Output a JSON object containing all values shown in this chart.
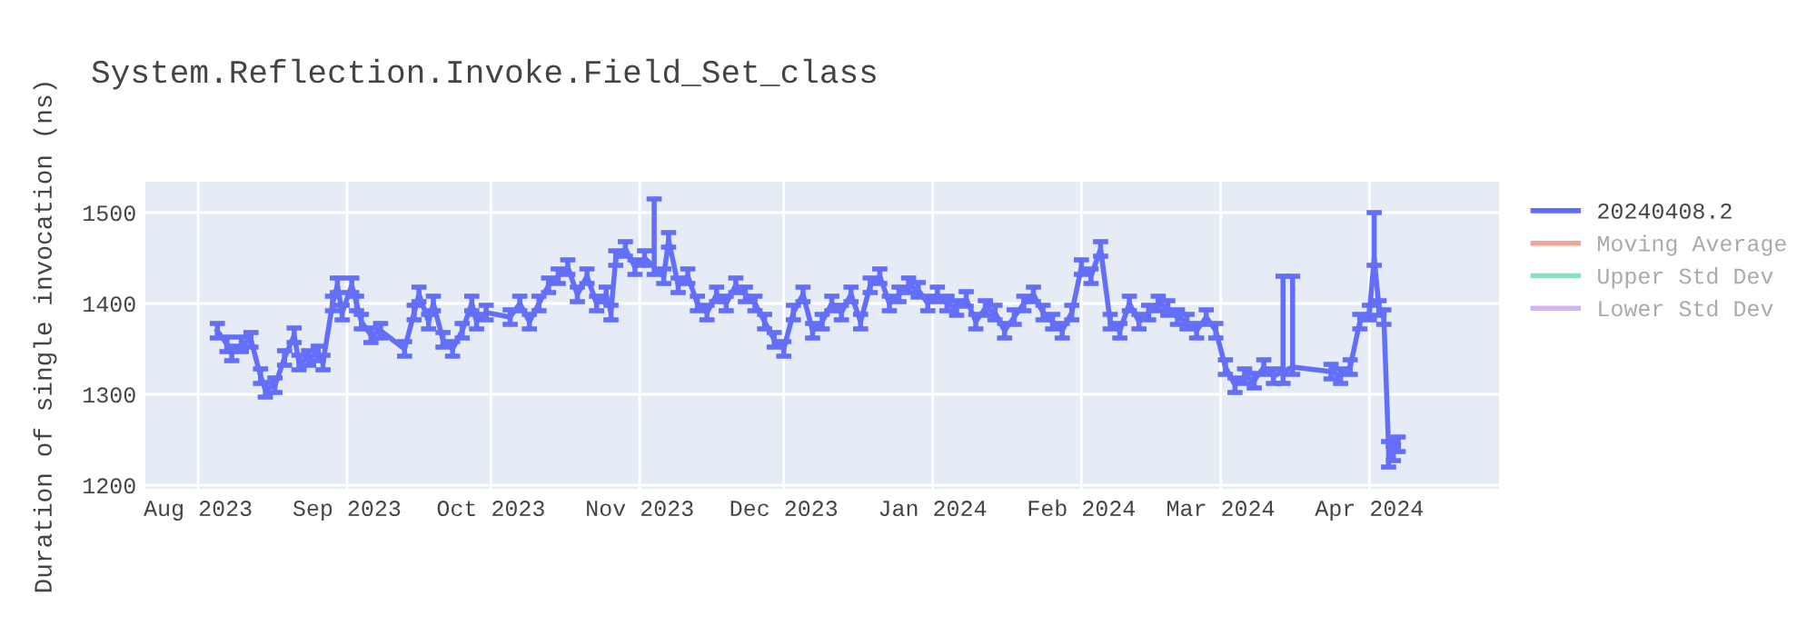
{
  "chart_data": {
    "type": "line",
    "title": "System.Reflection.Invoke.Field_Set_class",
    "ylabel": "Duration of single invocation (ns)",
    "x": [
      "2023-08-05",
      "2023-08-07",
      "2023-08-08",
      "2023-08-10",
      "2023-08-12",
      "2023-08-14",
      "2023-08-15",
      "2023-08-17",
      "2023-08-19",
      "2023-08-21",
      "2023-08-22",
      "2023-08-24",
      "2023-08-26",
      "2023-08-27",
      "2023-08-29",
      "2023-08-30",
      "2023-08-31",
      "2023-09-02",
      "2023-09-03",
      "2023-09-04",
      "2023-09-06",
      "2023-09-08",
      "2023-09-13",
      "2023-09-15",
      "2023-09-16",
      "2023-09-18",
      "2023-09-19",
      "2023-09-21",
      "2023-09-23",
      "2023-09-25",
      "2023-09-27",
      "2023-09-28",
      "2023-09-30",
      "2023-10-05",
      "2023-10-07",
      "2023-10-09",
      "2023-10-11",
      "2023-10-13",
      "2023-10-15",
      "2023-10-17",
      "2023-10-19",
      "2023-10-21",
      "2023-10-23",
      "2023-10-25",
      "2023-10-26",
      "2023-10-27",
      "2023-10-29",
      "2023-10-31",
      "2023-11-02",
      "2023-11-04",
      "2023-11-06",
      "2023-11-07",
      "2023-11-09",
      "2023-11-11",
      "2023-11-13",
      "2023-11-15",
      "2023-11-17",
      "2023-11-19",
      "2023-11-21",
      "2023-11-23",
      "2023-11-25",
      "2023-11-27",
      "2023-11-29",
      "2023-12-01",
      "2023-12-03",
      "2023-12-05",
      "2023-12-07",
      "2023-12-09",
      "2023-12-11",
      "2023-12-13",
      "2023-12-15",
      "2023-12-17",
      "2023-12-19",
      "2023-12-21",
      "2023-12-23",
      "2023-12-25",
      "2023-12-27",
      "2023-12-29",
      "2023-12-31",
      "2024-01-02",
      "2024-01-04",
      "2024-01-06",
      "2024-01-08",
      "2024-01-10",
      "2024-01-12",
      "2024-01-14",
      "2024-01-16",
      "2024-01-18",
      "2024-01-20",
      "2024-01-22",
      "2024-01-24",
      "2024-01-26",
      "2024-01-28",
      "2024-01-30",
      "2024-02-01",
      "2024-02-03",
      "2024-02-05",
      "2024-02-07",
      "2024-02-09",
      "2024-02-11",
      "2024-02-13",
      "2024-02-15",
      "2024-02-17",
      "2024-02-19",
      "2024-02-21",
      "2024-02-23",
      "2024-02-25",
      "2024-02-27",
      "2024-02-29",
      "2024-03-02",
      "2024-03-04",
      "2024-03-06",
      "2024-03-08",
      "2024-03-10",
      "2024-03-12",
      "2024-03-14",
      "2024-03-16",
      "2024-03-24",
      "2024-03-26",
      "2024-03-28",
      "2024-03-30",
      "2024-04-01",
      "2024-04-02",
      "2024-04-03",
      "2024-04-04",
      "2024-04-05",
      "2024-04-06",
      "2024-04-07"
    ],
    "series": [
      {
        "name": "20240408.2",
        "color": "#636efa",
        "values": [
          1370,
          1355,
          1345,
          1355,
          1360,
          1320,
          1305,
          1310,
          1340,
          1365,
          1335,
          1340,
          1345,
          1335,
          1400,
          1420,
          1390,
          1420,
          1400,
          1380,
          1365,
          1370,
          1350,
          1390,
          1410,
          1380,
          1400,
          1360,
          1350,
          1370,
          1400,
          1380,
          1390,
          1385,
          1400,
          1380,
          1400,
          1420,
          1430,
          1440,
          1410,
          1430,
          1400,
          1410,
          1390,
          1450,
          1460,
          1440,
          1450,
          1440,
          1430,
          1470,
          1420,
          1430,
          1400,
          1390,
          1410,
          1400,
          1420,
          1410,
          1400,
          1380,
          1360,
          1350,
          1390,
          1410,
          1370,
          1380,
          1400,
          1390,
          1410,
          1380,
          1420,
          1430,
          1400,
          1410,
          1420,
          1415,
          1400,
          1410,
          1400,
          1395,
          1405,
          1380,
          1395,
          1390,
          1370,
          1385,
          1400,
          1410,
          1390,
          1380,
          1370,
          1390,
          1440,
          1430,
          1460,
          1380,
          1370,
          1400,
          1380,
          1390,
          1400,
          1395,
          1385,
          1380,
          1370,
          1385,
          1370,
          1330,
          1310,
          1320,
          1315,
          1330,
          1320,
          1325,
          1330,
          1325,
          1320,
          1330,
          1380,
          1390,
          1450,
          1395,
          1385,
          1240,
          1235,
          1245
        ],
        "errors": [
          8,
          8,
          8,
          8,
          8,
          8,
          8,
          8,
          8,
          8,
          8,
          8,
          8,
          8,
          8,
          8,
          8,
          8,
          8,
          8,
          8,
          8,
          8,
          8,
          8,
          8,
          8,
          8,
          8,
          8,
          8,
          8,
          8,
          8,
          8,
          8,
          8,
          8,
          8,
          8,
          8,
          8,
          8,
          8,
          8,
          8,
          8,
          8,
          8,
          [
            1432,
            1515
          ],
          8,
          8,
          8,
          8,
          8,
          8,
          8,
          8,
          8,
          8,
          8,
          8,
          8,
          8,
          8,
          8,
          8,
          8,
          8,
          8,
          8,
          8,
          8,
          8,
          8,
          8,
          8,
          8,
          8,
          8,
          8,
          8,
          8,
          8,
          8,
          8,
          8,
          8,
          8,
          8,
          8,
          8,
          8,
          8,
          8,
          8,
          8,
          8,
          8,
          8,
          8,
          8,
          8,
          8,
          8,
          8,
          8,
          8,
          8,
          8,
          8,
          8,
          8,
          8,
          8,
          [
            1312,
            1430
          ],
          [
            1322,
            1430
          ],
          8,
          8,
          8,
          8,
          8,
          [
            1442,
            1500
          ],
          8,
          8,
          [
            1220,
            1248
          ],
          8,
          8
        ]
      },
      {
        "name": "Moving Average",
        "color": "#f4a592",
        "values": [
          null,
          null,
          null,
          null,
          null,
          null,
          null,
          null,
          null,
          null,
          null,
          null,
          null,
          null,
          null,
          null,
          null,
          null,
          null,
          null,
          null,
          null,
          null,
          null,
          null,
          null,
          null,
          null,
          null,
          null,
          null,
          null,
          null,
          null,
          null,
          null,
          null,
          null,
          null,
          null,
          null,
          null,
          null,
          null,
          null,
          null,
          null,
          null,
          null,
          null,
          null,
          null,
          null,
          null,
          null,
          null,
          null,
          null,
          null,
          null,
          null,
          null,
          null,
          null,
          null,
          null,
          null,
          null,
          null,
          null,
          null,
          null,
          null,
          null,
          null,
          null,
          null,
          null,
          null,
          null,
          null,
          null,
          null,
          null,
          null,
          null,
          null,
          null,
          null,
          null,
          null,
          null,
          null,
          null,
          null,
          null,
          null,
          null,
          null,
          null,
          null,
          null,
          null,
          null,
          null,
          null,
          null,
          null,
          null,
          null,
          null,
          null,
          null,
          null,
          null,
          null,
          null,
          null,
          null,
          null,
          null,
          null,
          null,
          null,
          null,
          null,
          null,
          null
        ]
      },
      {
        "name": "Upper Std Dev",
        "color": "#7fe5ca",
        "values": [
          null,
          null,
          null,
          null,
          null,
          null,
          null,
          null,
          null,
          null,
          null,
          null,
          null,
          null,
          null,
          null,
          null,
          null,
          null,
          null,
          null,
          null,
          null,
          null,
          null,
          null,
          null,
          null,
          null,
          null,
          null,
          null,
          null,
          null,
          null,
          null,
          null,
          null,
          null,
          null,
          null,
          null,
          null,
          null,
          null,
          null,
          null,
          null,
          null,
          null,
          null,
          null,
          null,
          null,
          null,
          null,
          null,
          null,
          null,
          null,
          null,
          null,
          null,
          null,
          null,
          null,
          null,
          null,
          null,
          null,
          null,
          null,
          null,
          null,
          null,
          null,
          null,
          null,
          null,
          null,
          null,
          null,
          null,
          null,
          null,
          null,
          null,
          null,
          null,
          null,
          null,
          null,
          null,
          null,
          null,
          null,
          null,
          null,
          null,
          null,
          null,
          null,
          null,
          null,
          null,
          null,
          null,
          null,
          null,
          null,
          null,
          null,
          null,
          null,
          null,
          null,
          null,
          null,
          null,
          null,
          null,
          null,
          null,
          null,
          null,
          null,
          null,
          null
        ]
      },
      {
        "name": "Lower Std Dev",
        "color": "#d5b1fc",
        "values": [
          null,
          null,
          null,
          null,
          null,
          null,
          null,
          null,
          null,
          null,
          null,
          null,
          null,
          null,
          null,
          null,
          null,
          null,
          null,
          null,
          null,
          null,
          null,
          null,
          null,
          null,
          null,
          null,
          null,
          null,
          null,
          null,
          null,
          null,
          null,
          null,
          null,
          null,
          null,
          null,
          null,
          null,
          null,
          null,
          null,
          null,
          null,
          null,
          null,
          null,
          null,
          null,
          null,
          null,
          null,
          null,
          null,
          null,
          null,
          null,
          null,
          null,
          null,
          null,
          null,
          null,
          null,
          null,
          null,
          null,
          null,
          null,
          null,
          null,
          null,
          null,
          null,
          null,
          null,
          null,
          null,
          null,
          null,
          null,
          null,
          null,
          null,
          null,
          null,
          null,
          null,
          null,
          null,
          null,
          null,
          null,
          null,
          null,
          null,
          null,
          null,
          null,
          null,
          null,
          null,
          null,
          null,
          null,
          null,
          null,
          null,
          null,
          null,
          null,
          null,
          null,
          null,
          null,
          null,
          null,
          null,
          null,
          null,
          null,
          null,
          null,
          null,
          null
        ]
      }
    ],
    "xlim": [
      "2023-07-21",
      "2024-04-28"
    ],
    "xticks": [
      {
        "value": "2023-08-01",
        "label": "Aug 2023"
      },
      {
        "value": "2023-09-01",
        "label": "Sep 2023"
      },
      {
        "value": "2023-10-01",
        "label": "Oct 2023"
      },
      {
        "value": "2023-11-01",
        "label": "Nov 2023"
      },
      {
        "value": "2023-12-01",
        "label": "Dec 2023"
      },
      {
        "value": "2024-01-01",
        "label": "Jan 2024"
      },
      {
        "value": "2024-02-01",
        "label": "Feb 2024"
      },
      {
        "value": "2024-03-01",
        "label": "Mar 2024"
      },
      {
        "value": "2024-04-01",
        "label": "Apr 2024"
      }
    ],
    "ylim": [
      1194,
      1534
    ],
    "yticks": [
      1200,
      1300,
      1400,
      1500
    ],
    "grid": true,
    "legend": "top right",
    "line_style": "solid"
  }
}
